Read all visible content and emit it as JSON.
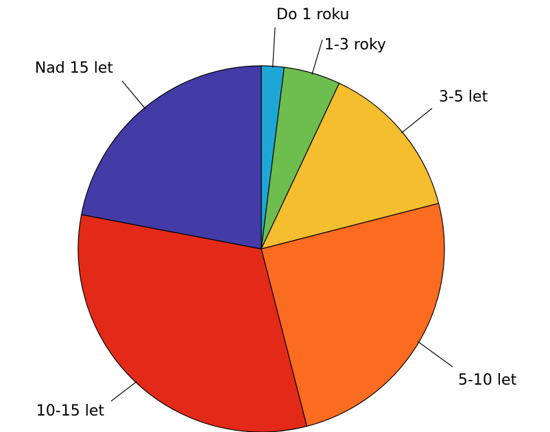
{
  "chart_data": {
    "type": "pie",
    "categories": [
      "Do 1 roku",
      "1-3 roky",
      "3-5 let",
      "5-10 let",
      "10-15 let",
      "Nad 15 let"
    ],
    "values": [
      2,
      5,
      14,
      25,
      32,
      22
    ],
    "colors": [
      "#1ea7d6",
      "#6ebd4f",
      "#f4be2f",
      "#fb6b20",
      "#e32a18",
      "#433ba6"
    ]
  }
}
